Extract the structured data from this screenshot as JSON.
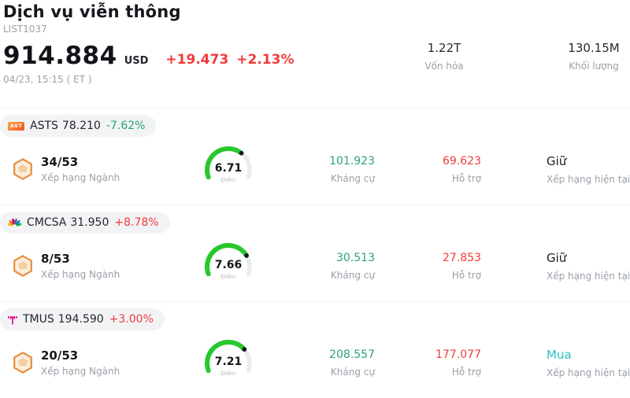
{
  "colors": {
    "up": "#f03b3b",
    "down": "#2ba471",
    "buy": "#2cc0c4",
    "gauge_green": "#28c82d",
    "pill_bg": "#f2f3f5"
  },
  "header": {
    "title": "Dịch vụ viễn thông",
    "list_id": "LIST1037",
    "price": "914.884",
    "currency": "USD",
    "change": "+19.473",
    "change_pct": "+2.13%",
    "datetime": "04/23, 15:15 ( ET )",
    "market_cap": {
      "value": "1.22T",
      "label": "Vốn hóa"
    },
    "volume": {
      "value": "130.15M",
      "label": "Khối lượng"
    }
  },
  "rows": [
    {
      "ticker": "ASTS",
      "last_price": "78.210",
      "change_pct": "-7.62%",
      "change_style": "color:#2ba471",
      "logo_text": "AST",
      "rank": "34/53",
      "rank_label": "Xếp hạng Ngành",
      "score": "6.71",
      "score_value": 6.71,
      "score_label": "Điểm",
      "resistance": "101.923",
      "resistance_label": "Kháng cự",
      "support": "69.623",
      "support_label": "Hỗ trợ",
      "rating": "Giữ",
      "rating_style": "color:#1a1c20",
      "rating_label": "Xếp hạng hiện tại"
    },
    {
      "ticker": "CMCSA",
      "last_price": "31.950",
      "change_pct": "+8.78%",
      "change_style": "color:#f03b3b",
      "rank": "8/53",
      "rank_label": "Xếp hạng Ngành",
      "score": "7.66",
      "score_value": 7.66,
      "score_label": "Điểm",
      "resistance": "30.513",
      "resistance_label": "Kháng cự",
      "support": "27.853",
      "support_label": "Hỗ trợ",
      "rating": "Giữ",
      "rating_style": "color:#1a1c20",
      "rating_label": "Xếp hạng hiện tại"
    },
    {
      "ticker": "TMUS",
      "last_price": "194.590",
      "change_pct": "+3.00%",
      "change_style": "color:#f03b3b",
      "rank": "20/53",
      "rank_label": "Xếp hạng Ngành",
      "score": "7.21",
      "score_value": 7.21,
      "score_label": "Điểm",
      "resistance": "208.557",
      "resistance_label": "Kháng cự",
      "support": "177.077",
      "support_label": "Hỗ trợ",
      "rating": "Mua",
      "rating_style": "color:#2cc0c4",
      "rating_label": "Xếp hạng hiện tại"
    }
  ]
}
